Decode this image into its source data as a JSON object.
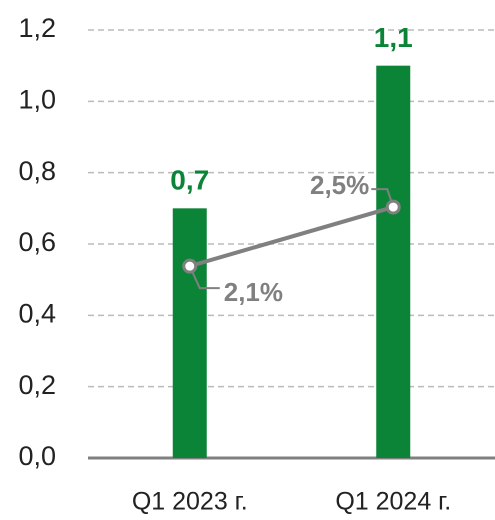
{
  "chart_data": {
    "type": "bar",
    "categories": [
      "Q1 2023 г.",
      "Q1 2024 г."
    ],
    "series": [
      {
        "type": "bar",
        "color": "#0b8438",
        "values": [
          0.7,
          1.1
        ],
        "value_labels": [
          "0,7",
          "1,1"
        ]
      },
      {
        "type": "line",
        "axis": "y2",
        "color": "#808080",
        "values": [
          2.1,
          2.5
        ],
        "value_labels": [
          "2,1%",
          "2,5%"
        ]
      }
    ],
    "ylim": [
      0,
      1.2
    ],
    "yticks": [
      {
        "value": 0,
        "label": "0,0"
      },
      {
        "value": 0.2,
        "label": "0,2"
      },
      {
        "value": 0.4,
        "label": "0,4"
      },
      {
        "value": 0.6,
        "label": "0,6"
      },
      {
        "value": 0.8,
        "label": "0,8"
      },
      {
        "value": 1.0,
        "label": "1,0"
      },
      {
        "value": 1.2,
        "label": "1,2"
      }
    ],
    "y2lim": [
      0.8,
      3.7
    ],
    "grid": true
  }
}
